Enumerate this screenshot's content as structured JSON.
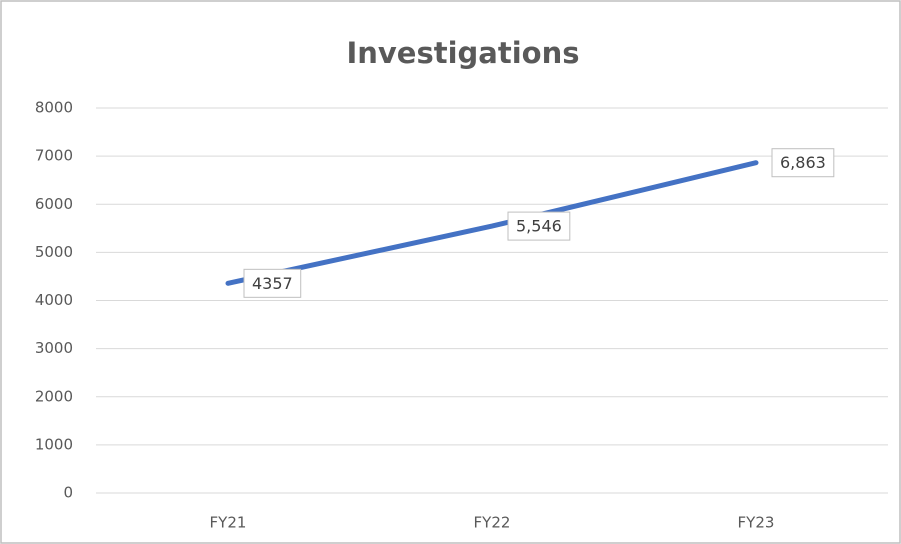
{
  "chart_data": {
    "type": "line",
    "title": "Investigations",
    "categories": [
      "FY21",
      "FY22",
      "FY23"
    ],
    "series": [
      {
        "name": "Investigations",
        "color": "#4472c4",
        "values": [
          4357,
          5546,
          6863
        ],
        "value_labels": [
          "4357",
          "5,546",
          "6,863"
        ]
      }
    ],
    "ylim": [
      0,
      8000
    ],
    "yticks": [
      0,
      1000,
      2000,
      3000,
      4000,
      5000,
      6000,
      7000,
      8000
    ],
    "grid": true
  }
}
